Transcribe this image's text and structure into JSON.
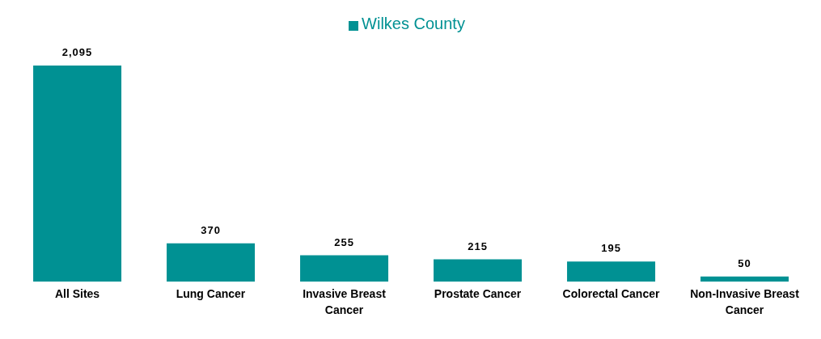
{
  "chart_data": {
    "type": "bar",
    "categories": [
      "All Sites",
      "Lung Cancer",
      "Invasive Breast Cancer",
      "Prostate Cancer",
      "Colorectal Cancer",
      "Non-Invasive Breast Cancer"
    ],
    "series": [
      {
        "name": "Wilkes County",
        "color": "#009193",
        "values": [
          2095,
          370,
          255,
          215,
          195,
          50
        ],
        "value_labels": [
          "2,095",
          "370",
          "255",
          "215",
          "195",
          "50"
        ]
      }
    ],
    "legend": "top",
    "grid": false
  }
}
